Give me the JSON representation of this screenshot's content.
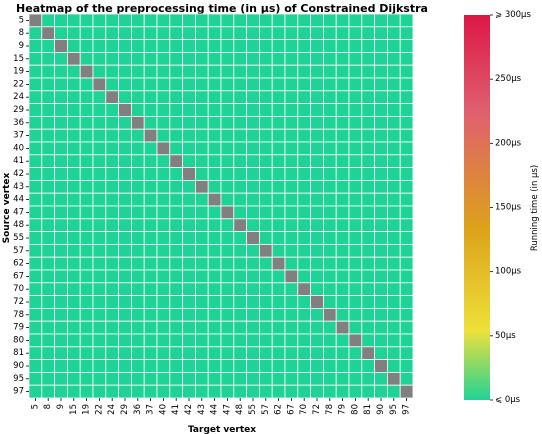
{
  "chart_data": {
    "type": "heatmap",
    "title": "Heatmap of the preprocessing time (in μs) of Constrained Dijkstra",
    "xlabel": "Target vertex",
    "ylabel": "Source vertex",
    "rows": [
      5,
      8,
      9,
      15,
      19,
      22,
      24,
      29,
      36,
      37,
      40,
      41,
      42,
      43,
      44,
      47,
      48,
      55,
      57,
      62,
      67,
      70,
      72,
      78,
      79,
      80,
      81,
      90,
      95,
      97
    ],
    "columns": [
      5,
      8,
      9,
      15,
      19,
      22,
      24,
      29,
      36,
      37,
      40,
      41,
      42,
      43,
      44,
      47,
      48,
      55,
      57,
      62,
      67,
      70,
      72,
      78,
      79,
      80,
      81,
      90,
      95,
      97
    ],
    "off_diagonal_value": 0,
    "diagonal": "masked",
    "colorbar": {
      "label": "Running time (in μs)",
      "range": [
        0,
        300
      ],
      "ticks": [
        0,
        50,
        100,
        150,
        200,
        250,
        300
      ],
      "tick_labels": [
        "⩽ 0μs",
        "50μs",
        "100μs",
        "150μs",
        "200μs",
        "250μs",
        "⩾ 300μs"
      ],
      "colors": [
        "#1fd396",
        "#eee03a",
        "#dca11b",
        "#e05f6f",
        "#dc1745"
      ]
    },
    "colors": {
      "masked": "#808080",
      "grid": "#ffffff"
    }
  }
}
